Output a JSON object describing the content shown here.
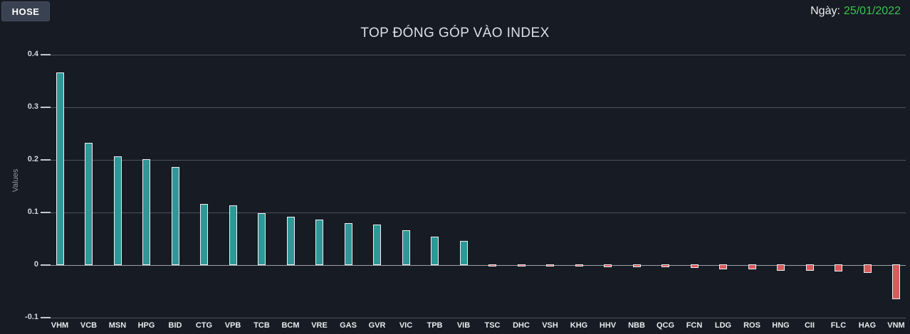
{
  "header": {
    "exchange_button": "HOSE",
    "date_label": "Ngày:",
    "date_value": "25/01/2022"
  },
  "colors": {
    "positive_bar": "#2f9797",
    "negative_bar": "#d65c5c",
    "bar_border": "#eef0f3",
    "date_value_green": "#3cc24e",
    "background": "#171b24",
    "gridline": "#4c525d",
    "zero_line": "#9aa0ab"
  },
  "chart_data": {
    "type": "bar",
    "title": "TOP ĐÓNG GÓP VÀO INDEX",
    "xlabel": "",
    "ylabel": "Values",
    "ylim": [
      -0.1,
      0.4
    ],
    "yticks": [
      -0.1,
      0,
      0.1,
      0.2,
      0.3,
      0.4
    ],
    "grid": "horizontal",
    "legend_position": "none",
    "categories": [
      "VHM",
      "VCB",
      "MSN",
      "HPG",
      "BID",
      "CTG",
      "VPB",
      "TCB",
      "BCM",
      "VRE",
      "GAS",
      "GVR",
      "VIC",
      "TPB",
      "VIB",
      "TSC",
      "DHC",
      "VSH",
      "KHG",
      "HHV",
      "NBB",
      "QCG",
      "FCN",
      "LDG",
      "ROS",
      "HNG",
      "CII",
      "FLC",
      "HAG",
      "VNM"
    ],
    "values": [
      0.366,
      0.233,
      0.207,
      0.201,
      0.187,
      0.116,
      0.114,
      0.099,
      0.092,
      0.086,
      0.08,
      0.077,
      0.066,
      0.054,
      0.046,
      -0.004,
      -0.004,
      -0.004,
      -0.004,
      -0.005,
      -0.006,
      -0.006,
      -0.007,
      -0.009,
      -0.01,
      -0.012,
      -0.012,
      -0.013,
      -0.016,
      -0.066
    ]
  }
}
